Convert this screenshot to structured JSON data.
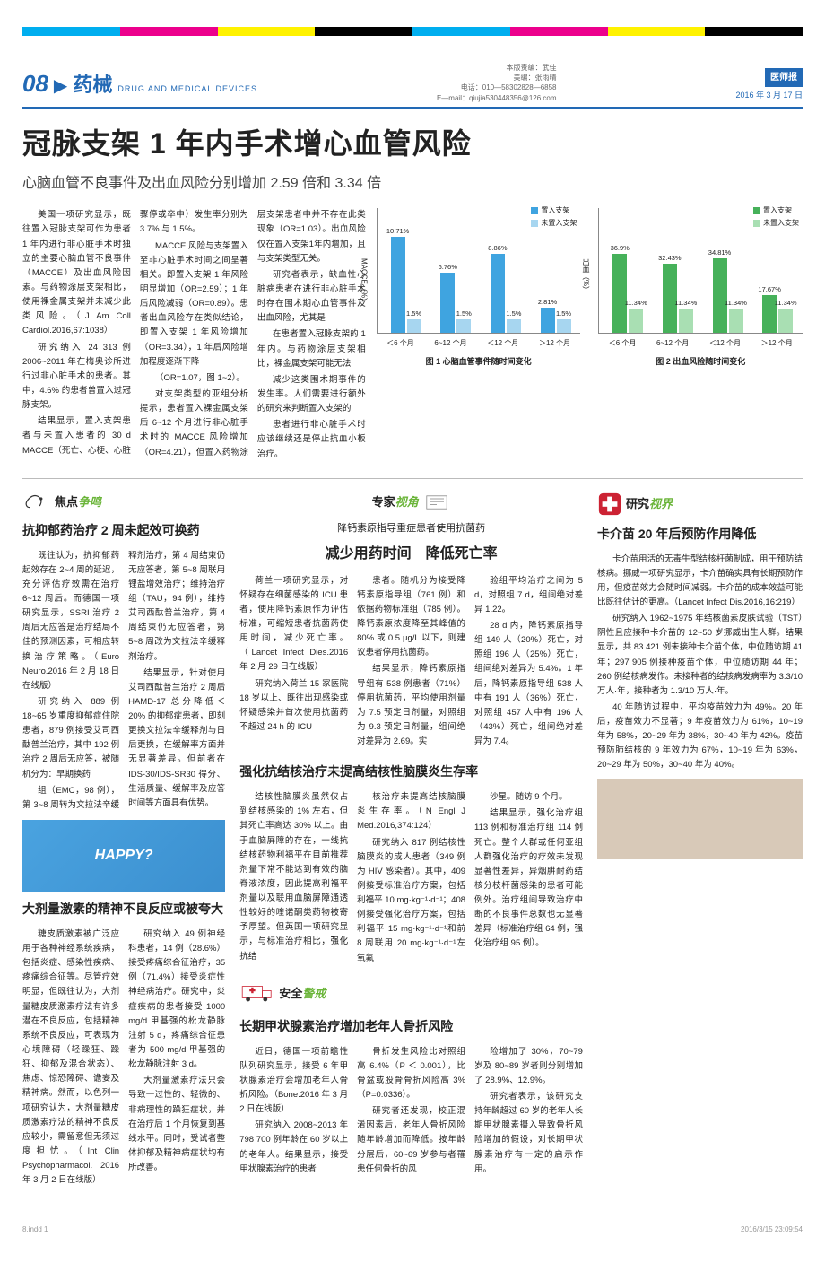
{
  "header": {
    "page_num": "08",
    "section_cn": "药械",
    "section_en": "DRUG AND MEDICAL DEVICES",
    "editor_line1": "本版责编：武佳",
    "editor_line2": "美编：张雨晴",
    "editor_line3": "电话：010—58302828—6858",
    "editor_line4": "E—mail：qiujia530448356@126.com",
    "pub_name": "医师报",
    "pub_date": "2016 年 3 月 17 日"
  },
  "main": {
    "headline": "冠脉支架 1 年内手术增心血管风险",
    "sub": "心脑血管不良事件及出血风险分别增加 2.59 倍和 3.34 倍",
    "paras": [
      "美国一项研究显示，既往置入冠脉支架可作为患者 1 年内进行非心脏手术时独立的主要心脑血管不良事件（MACCE）及出血风险因素。与药物涂层支架相比，使用裸金属支架并未减少此类风险。（J Am Coll Cardiol.2016,67:1038）",
      "研究纳入 24 313 例 2006~2011 年在梅奥诊所进行过非心脏手术的患者。其中，4.6% 的患者曾置入过冠脉支架。",
      "结果显示，置入支架患者与未置入患者的 30 d MACCE（死亡、心梗、心脏骤停或卒中）发生率分别为 3.7% 与 1.5%。",
      "MACCE 风险与支架置入至非心脏手术时间之间呈著相关。即置入支架 1 年风险明显增加（OR=2.59）；1 年后风险减弱（OR=0.89）。患者出血风险存在类似结论，即置入支架 1 年风险增加（OR=3.34），1 年后风险增加程度逐渐下降",
      "（OR=1.07，图 1~2）。",
      "对支架类型的亚组分析提示，患者置入裸金属支架后 6~12 个月进行非心脏手术时的 MACCE 风险增加（OR=4.21），但置入药物涂层支架患者中并不存在此类现象（OR=1.03）。出血风险仅在置入支架1年内增加，且与支架类型无关。",
      "研究者表示，缺血性心脏病患者在进行非心脏手术时存在围术期心血管事件及出血风险，尤其是",
      "在患者置入冠脉支架的 1 年内。与药物涂层支架相比，裸金属支架可能无法",
      "减少这类围术期事件的发生率。人们需要进行额外的研究来判断置入支架的",
      "患者进行非心脏手术时应该继续还是停止抗血小板治疗。"
    ]
  },
  "chart1": {
    "legend_a": "置入支架",
    "legend_b": "未置入支架",
    "ylabel": "MACCE（%）",
    "ymax": 12,
    "color_a": "#3fa4e0",
    "color_b": "#a7d6f0",
    "cats": [
      "＜6 个月",
      "6~12 个月",
      "＜12 个月",
      "＞12 个月"
    ],
    "bars": [
      [
        10.71,
        1.5
      ],
      [
        6.76,
        1.5
      ],
      [
        8.86,
        1.5
      ],
      [
        2.81,
        1.5
      ]
    ],
    "caption": "图 1  心脑血管事件随时间变化"
  },
  "chart2": {
    "legend_a": "置入支架",
    "legend_b": "未置入支架",
    "ylabel": "出血（%）",
    "ymax": 50,
    "color_a": "#46b15a",
    "color_b": "#a9dfb3",
    "cats": [
      "＜6 个月",
      "6~12 个月",
      "＜12 个月",
      "＞12 个月"
    ],
    "bars": [
      [
        36.9,
        11.34
      ],
      [
        32.43,
        11.34
      ],
      [
        34.81,
        11.34
      ],
      [
        17.67,
        11.34
      ]
    ],
    "caption": "图 2  出血风险随时间变化"
  },
  "badges": {
    "focus": "焦点",
    "focus_accent": "争鸣",
    "expert": "专家",
    "expert_accent": "视角",
    "research": "研究",
    "research_accent": "视界",
    "safe": "安全",
    "safe_accent": "警戒"
  },
  "left": {
    "a1_title": "抗抑郁药治疗 2 周未起效可换药",
    "a1_body": [
      "既往认为，抗抑郁药起效存在 2~4 周的延迟，充分评估疗效需在治疗 6~12 周后。而德国一项研究显示，SSRI 治疗 2 周后无应答是治疗结局不佳的预测因素，可相应转换治疗策略。（Euro Neuro.2016 年 2 月 18 日在线版）",
      "研究纳入 889 例 18~65 岁重度抑郁症住院患者，879 例接受艾司西酞普兰治疗，其中 192 例治疗 2 周后无应答，被随机分为：早期换药",
      "组（EMC，98 例），第 3~8 周转为文拉法辛缓释剂治疗，第 4 周结束仍无应答者，第 5~8 周联用锂盐增效治疗；维持治疗组（TAU，94 例），维持艾司西酞普兰治疗，第 4 周结束仍无应答者，第 5~8 周改为文拉法辛缓释剂治疗。",
      "结果显示，针对使用艾司西酞普兰治疗 2 周后 HAMD-17 总分降低＜20% 的抑郁症患者，即刻更换文拉法辛缓释剂与日后更换，在缓解率方面并无显著差异。但前者在 IDS-30/IDS-SR30 得分、生活质量、缓解率及应答时间等方面具有优势。"
    ],
    "a2_title": "大剂量激素的精神不良反应或被夸大",
    "a2_body": [
      "糖皮质激素被广泛应用于各种神经系统疾病，包括炎症、感染性疾病、疼痛综合征等。尽管疗效明显，但既往认为，大剂量糖皮质激素疗法有许多潜在不良反应，包括精神系统不良反应，可表现为心境障碍（轻躁狂、躁狂、抑郁及混合状态）、焦虑、惊恐障碍、谵妄及精神病。然而，以色列一项研究认为，大剂量糖皮质激素疗法的精神不良反应较小，需留意但无须过度担忧。（Int Clin Psychopharmacol. 2016 年 3 月 2 日在线版）",
      "研究纳入 49 例神经科患者，14 例（28.6%）接受疼痛综合征治疗，35 例（71.4%）接受炎症性神经病治疗。研究中，炎症疾病的患者接受 1000 mg/d 甲基强的松龙静脉注射 5 d，疼痛综合征患者为 500 mg/d 甲基强的松龙静脉注射 3 d。",
      "大剂量激素疗法只会导致一过性的、轻微的、非病理性的躁狂症状，并在治疗后 1 个月恢复到基线水平。同时，受试者整体抑郁及精神病症状均有所改善。"
    ]
  },
  "mid": {
    "a1_sup": "降钙素原指导重症患者使用抗菌药",
    "a1_title": "减少用药时间　降低死亡率",
    "a1_body": [
      "荷兰一项研究显示，对怀疑存在细菌感染的 ICU 患者，使用降钙素原作为评估标准，可缩短患者抗菌药使用时间，减少死亡率。（Lancet Infect Dies.2016 年 2 月 29 日在线版）",
      "研究纳入荷兰 15 家医院 18 岁以上、既往出现感染或怀疑感染并首次使用抗菌药不超过 24 h 的 ICU",
      "患者。随机分为接受降钙素原指导组（761 例）和依据药物标准组（785 例）。降钙素原浓度降至其峰值的 80% 或 0.5 μg/L 以下，则建议患者停用抗菌药。",
      "结果显示，降钙素原指导组有 538 例患者（71%）停用抗菌药，平均使用剂量为 7.5 预定日剂量，对照组为 9.3 预定日剂量，组间绝对差异为 2.69。实",
      "验组平均治疗之间为 5 d，对照组 7 d，组间绝对差异 1.22。",
      "28 d 内，降钙素原指导组 149 人（20%）死亡，对照组 196 人（25%）死亡，组间绝对差异为 5.4%。1 年后，降钙素原指导组 538 人中有 191 人（36%）死亡，对照组 457 人中有 196 人（43%）死亡，组间绝对差异为 7.4。"
    ],
    "a2_title": "强化抗结核治疗未提高结核性脑膜炎生存率",
    "a2_body": [
      "结核性脑膜炎虽然仅占到结核感染的 1% 左右，但其死亡率高达 30% 以上。由于血脑屏障的存在，一线抗结核药物利福平在目前推荐剂量下常不能达到有效的脑脊液浓度，因此提高利福平剂量以及联用血脑屏障通透性较好的喹诺酮类药物被寄予厚望。但英国一项研究显示，与标准治疗相比，强化抗结",
      "核治疗未提高结核脑膜炎生存率。（N Engl J Med.2016,374:124）",
      "研究纳入 817 例结核性脑膜炎的成人患者（349 例为 HIV 感染者）。其中，409 例接受标准治疗方案，包括利福平 10 mg·kg⁻¹·d⁻¹；408 例接受强化治疗方案，包括利福平 15 mg·kg⁻¹·d⁻¹和前 8 周联用 20 mg·kg⁻¹·d⁻¹左氧氟",
      "沙星。随访 9 个月。",
      "结果显示，强化治疗组 113 例和标准治疗组 114 例死亡。整个人群或任何亚组人群强化治疗的疗效未发现显著性差异，异烟肼耐药结核分枝杆菌感染的患者可能例外。治疗组间导致治疗中断的不良事件总数也无显著差异（标准治疗组 64 例，强化治疗组 95 例）。"
    ],
    "a3_title": "长期甲状腺素治疗增加老年人骨折风险",
    "a3_body": [
      "近日，德国一项前瞻性队列研究显示，接受 6 年甲状腺素治疗会增加老年人骨折风险。（Bone.2016 年 3 月 2 日在线版）",
      "研究纳入 2008~2013 年 798 700 例年龄在 60 岁以上的老年人。结果显示，接受甲状腺素治疗的患者",
      "骨折发生风险比对照组高 6.4%（P ＜ 0.001），比骨盆或股骨骨折风险高 3%（P=0.0336）。",
      "研究者还发现，校正混淆因素后，老年人骨折风险随年龄增加而降低。按年龄分层后，60~69 岁参与者罹患任何骨折的风",
      "险增加了 30%，70~79 岁及 80~89 岁者则分别增加了 28.9%、12.9%。",
      "研究者表示，该研究支持年龄超过 60 岁的老年人长期甲状腺素摄入导致骨折风险增加的假设，对长期甲状腺素治疗有一定的启示作用。"
    ]
  },
  "right": {
    "a1_title": "卡介苗 20 年后预防作用降低",
    "a1_body": [
      "卡介苗用活的无毒牛型结核杆菌制成，用于预防结核病。挪威一项研究显示，卡介苗确实具有长期预防作用，但疫苗效力会随时间减弱。卡介苗的成本效益可能比既往估计的更高。（Lancet Infect Dis.2016,16:219）",
      "研究纳入 1962~1975 年结核菌素皮肤试验（TST）阴性且应接种卡介苗的 12~50 岁挪威出生人群。结果显示，共 83 421 例未接种卡介苗个体，中位随访期 41 年；297 905 例接种疫苗个体，中位随访期 44 年；260 例结核病发作。未接种者的结核病发病率为 3.3/10 万人·年，接种者为 1.3/10 万人·年。",
      "40 年随访过程中，平均疫苗效力为 49%。20 年后，疫苗效力不显著；9 年疫苗效力为 61%，10~19 年为 58%，20~29 年为 38%，30~40 年为 42%。疫苗预防肺结核的 9 年效力为 67%，10~19 年为 63%，20~29 年为 50%，30~40 年为 40%。"
    ]
  },
  "footer": {
    "left": "8.indd   1",
    "right": "2016/3/15   23:09:54"
  }
}
